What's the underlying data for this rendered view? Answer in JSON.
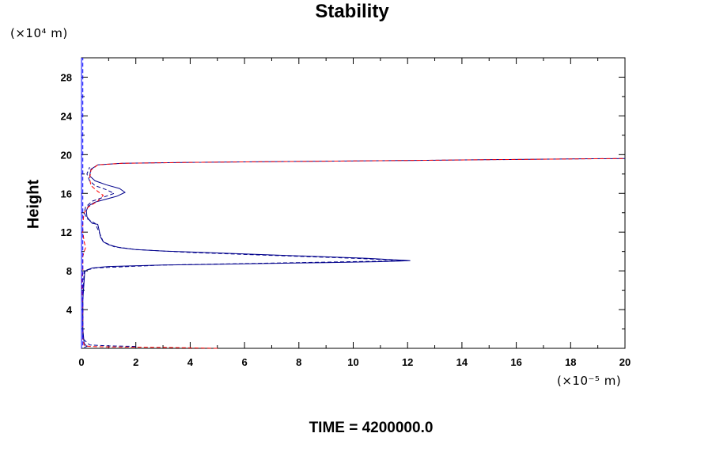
{
  "chart_data": {
    "type": "line",
    "title": "Stability",
    "ylabel": "Height",
    "y_unit": "(×10⁴ m)",
    "x_unit": "(×10⁻⁵ m)",
    "footer": "TIME = 4200000.0",
    "xlim": [
      0,
      20
    ],
    "ylim": [
      0,
      30
    ],
    "x_ticks": [
      "0",
      "2",
      "4",
      "6",
      "8",
      "10",
      "12",
      "14",
      "16",
      "18",
      "20"
    ],
    "y_ticks": [
      "4",
      "8",
      "12",
      "16",
      "20",
      "24",
      "28"
    ],
    "grid": false,
    "series": [
      {
        "color": "#00008b",
        "dash": "solid",
        "points": [
          [
            0.1,
            0.1
          ],
          [
            0.2,
            0.2
          ],
          [
            0.1,
            0.5
          ],
          [
            0.05,
            2
          ],
          [
            0.05,
            5
          ],
          [
            0.1,
            7
          ],
          [
            0.12,
            7.9
          ],
          [
            0.2,
            8.1
          ],
          [
            0.4,
            8.3
          ],
          [
            1,
            8.45
          ],
          [
            3,
            8.6
          ],
          [
            6,
            8.72
          ],
          [
            9,
            8.85
          ],
          [
            11,
            8.95
          ],
          [
            12.1,
            9.05
          ],
          [
            11.5,
            9.15
          ],
          [
            10.5,
            9.3
          ],
          [
            9,
            9.45
          ],
          [
            7.5,
            9.6
          ],
          [
            6,
            9.75
          ],
          [
            4.5,
            9.9
          ],
          [
            3,
            10.05
          ],
          [
            2,
            10.2
          ],
          [
            1.4,
            10.4
          ],
          [
            1,
            10.7
          ],
          [
            0.8,
            11
          ],
          [
            0.7,
            11.5
          ],
          [
            0.65,
            12.2
          ],
          [
            0.6,
            12.8
          ],
          [
            0.4,
            12.9
          ],
          [
            0.3,
            13.2
          ],
          [
            0.2,
            13.6
          ],
          [
            0.18,
            14.2
          ],
          [
            0.25,
            14.7
          ],
          [
            0.5,
            15.1
          ],
          [
            0.9,
            15.4
          ],
          [
            1.3,
            15.7
          ],
          [
            1.6,
            16.1
          ],
          [
            1.4,
            16.5
          ],
          [
            0.9,
            16.9
          ],
          [
            0.5,
            17.3
          ],
          [
            0.3,
            17.8
          ],
          [
            0.35,
            18.5
          ],
          [
            0.6,
            18.95
          ],
          [
            1.5,
            19.1
          ],
          [
            4,
            19.2
          ],
          [
            8,
            19.3
          ],
          [
            12,
            19.4
          ],
          [
            16,
            19.5
          ],
          [
            20,
            19.6
          ]
        ]
      },
      {
        "color": "#ff0000",
        "dash": "dashed",
        "points": [
          [
            5,
            0
          ],
          [
            3,
            0.1
          ],
          [
            1,
            0.15
          ],
          [
            0.3,
            0.2
          ],
          [
            0.1,
            0.3
          ],
          [
            0.05,
            1
          ],
          [
            0.05,
            4
          ],
          [
            0.02,
            7
          ],
          [
            0.05,
            8
          ],
          [
            0.05,
            9
          ],
          [
            0.05,
            9.5
          ],
          [
            0.1,
            10
          ],
          [
            0.15,
            10.4
          ],
          [
            0.1,
            11
          ],
          [
            0.05,
            12
          ],
          [
            0.05,
            13
          ],
          [
            0.1,
            14
          ],
          [
            0.25,
            14.6
          ],
          [
            0.6,
            15.2
          ],
          [
            0.8,
            15.8
          ],
          [
            0.6,
            16.2
          ],
          [
            0.35,
            16.8
          ],
          [
            0.3,
            17.5
          ],
          [
            0.35,
            18.4
          ],
          [
            0.6,
            18.95
          ],
          [
            1.5,
            19.1
          ],
          [
            4,
            19.2
          ],
          [
            8,
            19.3
          ],
          [
            12,
            19.4
          ],
          [
            16,
            19.5
          ],
          [
            20,
            19.6
          ]
        ]
      },
      {
        "color": "#00008b",
        "dash": "dashed",
        "points": [
          [
            2,
            0.2
          ],
          [
            1,
            0.25
          ],
          [
            0.3,
            0.35
          ],
          [
            0.05,
            1
          ],
          [
            0.05,
            5
          ],
          [
            0.1,
            8
          ],
          [
            0.5,
            8.3
          ],
          [
            3,
            8.6
          ],
          [
            8,
            8.85
          ],
          [
            12,
            9.05
          ],
          [
            10,
            9.3
          ],
          [
            7,
            9.6
          ],
          [
            4,
            9.9
          ],
          [
            2,
            10.2
          ],
          [
            1.2,
            10.5
          ],
          [
            0.8,
            11
          ],
          [
            0.65,
            12
          ],
          [
            0.5,
            12.9
          ],
          [
            0.2,
            13.4
          ],
          [
            0.1,
            14
          ],
          [
            0.15,
            14.6
          ],
          [
            0.4,
            15.2
          ],
          [
            0.8,
            15.6
          ],
          [
            1.2,
            16
          ],
          [
            0.9,
            16.4
          ],
          [
            0.5,
            16.8
          ],
          [
            0.3,
            17.3
          ],
          [
            0.2,
            18
          ],
          [
            0.3,
            18.7
          ]
        ]
      },
      {
        "color": "#0000ff",
        "dash": "solid",
        "points": [
          [
            0,
            0
          ],
          [
            0,
            30
          ]
        ]
      },
      {
        "color": "#0000ff",
        "dash": "dashed",
        "points": [
          [
            0.05,
            0.3
          ],
          [
            0.05,
            30
          ]
        ]
      }
    ]
  }
}
